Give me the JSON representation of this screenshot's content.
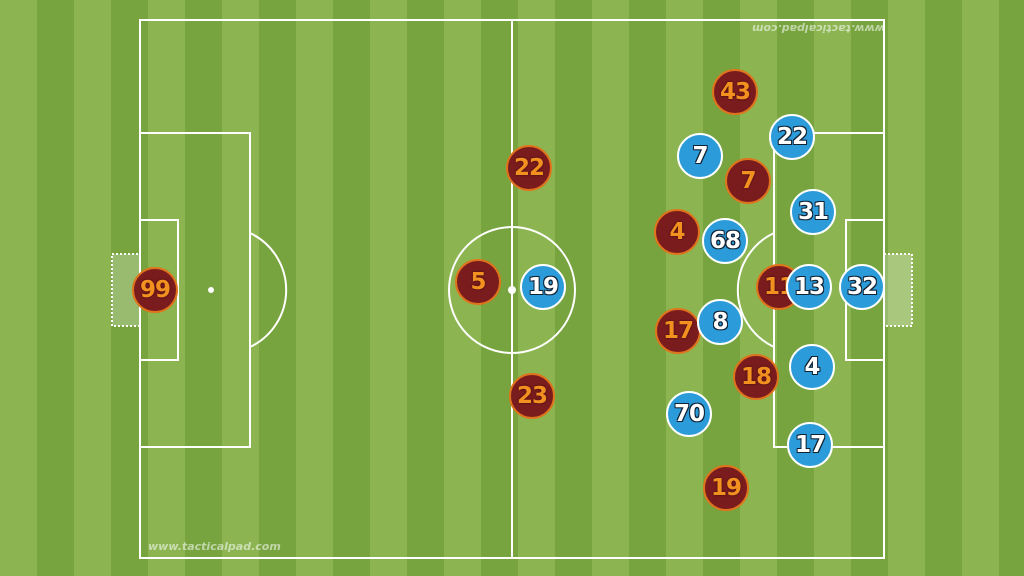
{
  "watermark": {
    "top": "www.tacticalpad.com",
    "bottom": "www.tacticalpad.com"
  },
  "colors": {
    "team_red": "#7a1c1e",
    "team_red_text": "#f29120",
    "team_blue": "#2b9bd9",
    "team_blue_text": "#ffffff",
    "pitch_light": "#8cb552",
    "pitch_dark": "#77a43f"
  },
  "team_red": [
    "99",
    "43",
    "22",
    "7",
    "4",
    "5",
    "11",
    "17",
    "18",
    "23",
    "19"
  ],
  "team_blue": [
    "7",
    "22",
    "31",
    "68",
    "19",
    "13",
    "32",
    "8",
    "4",
    "70",
    "17"
  ]
}
